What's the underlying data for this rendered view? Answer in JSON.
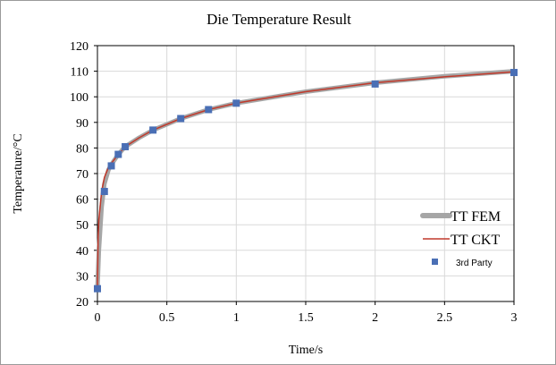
{
  "chart_data": {
    "type": "line",
    "title": "Die Temperature Result",
    "xlabel": "Time/s",
    "ylabel": "Temperature/°C",
    "xlim": [
      0,
      3
    ],
    "ylim": [
      20,
      120
    ],
    "xticks": [
      "0",
      "0.5",
      "1",
      "1.5",
      "2",
      "2.5",
      "3"
    ],
    "xtick_values": [
      0,
      0.5,
      1,
      1.5,
      2,
      2.5,
      3
    ],
    "yticks": [
      "20",
      "30",
      "40",
      "50",
      "60",
      "70",
      "80",
      "90",
      "100",
      "110",
      "120"
    ],
    "ytick_values": [
      20,
      30,
      40,
      50,
      60,
      70,
      80,
      90,
      100,
      110,
      120
    ],
    "grid": true,
    "legend_position": "bottom-right",
    "series": [
      {
        "name": "TT FEM",
        "style": "line",
        "color": "#a6a6a6",
        "x": [
          0,
          0.01,
          0.03,
          0.05,
          0.08,
          0.1,
          0.15,
          0.2,
          0.3,
          0.4,
          0.6,
          0.8,
          1,
          1.5,
          2,
          2.5,
          3
        ],
        "y": [
          25,
          40,
          57,
          66,
          71.5,
          73.5,
          77.5,
          80.5,
          84,
          87,
          91.5,
          95,
          97.5,
          102,
          105.5,
          108,
          110
        ]
      },
      {
        "name": "TT CKT",
        "style": "line",
        "color": "#c0392b",
        "x": [
          0,
          0.005,
          0.01,
          0.03,
          0.05,
          0.08,
          0.1,
          0.15,
          0.2,
          0.3,
          0.4,
          0.6,
          0.8,
          1,
          1.5,
          2,
          2.5,
          3
        ],
        "y": [
          25,
          45,
          52,
          63,
          68.5,
          72.5,
          74,
          77.5,
          80.5,
          84,
          87,
          91.5,
          95,
          97.5,
          102,
          105.5,
          107.8,
          109.8
        ]
      },
      {
        "name": "3rd Party",
        "style": "marker",
        "color": "#4a6fb5",
        "x": [
          0,
          0.05,
          0.1,
          0.15,
          0.2,
          0.4,
          0.6,
          0.8,
          1,
          2,
          3
        ],
        "y": [
          25,
          63,
          73,
          77.5,
          80.5,
          87,
          91.5,
          95,
          97.5,
          105,
          109.5
        ]
      }
    ]
  }
}
